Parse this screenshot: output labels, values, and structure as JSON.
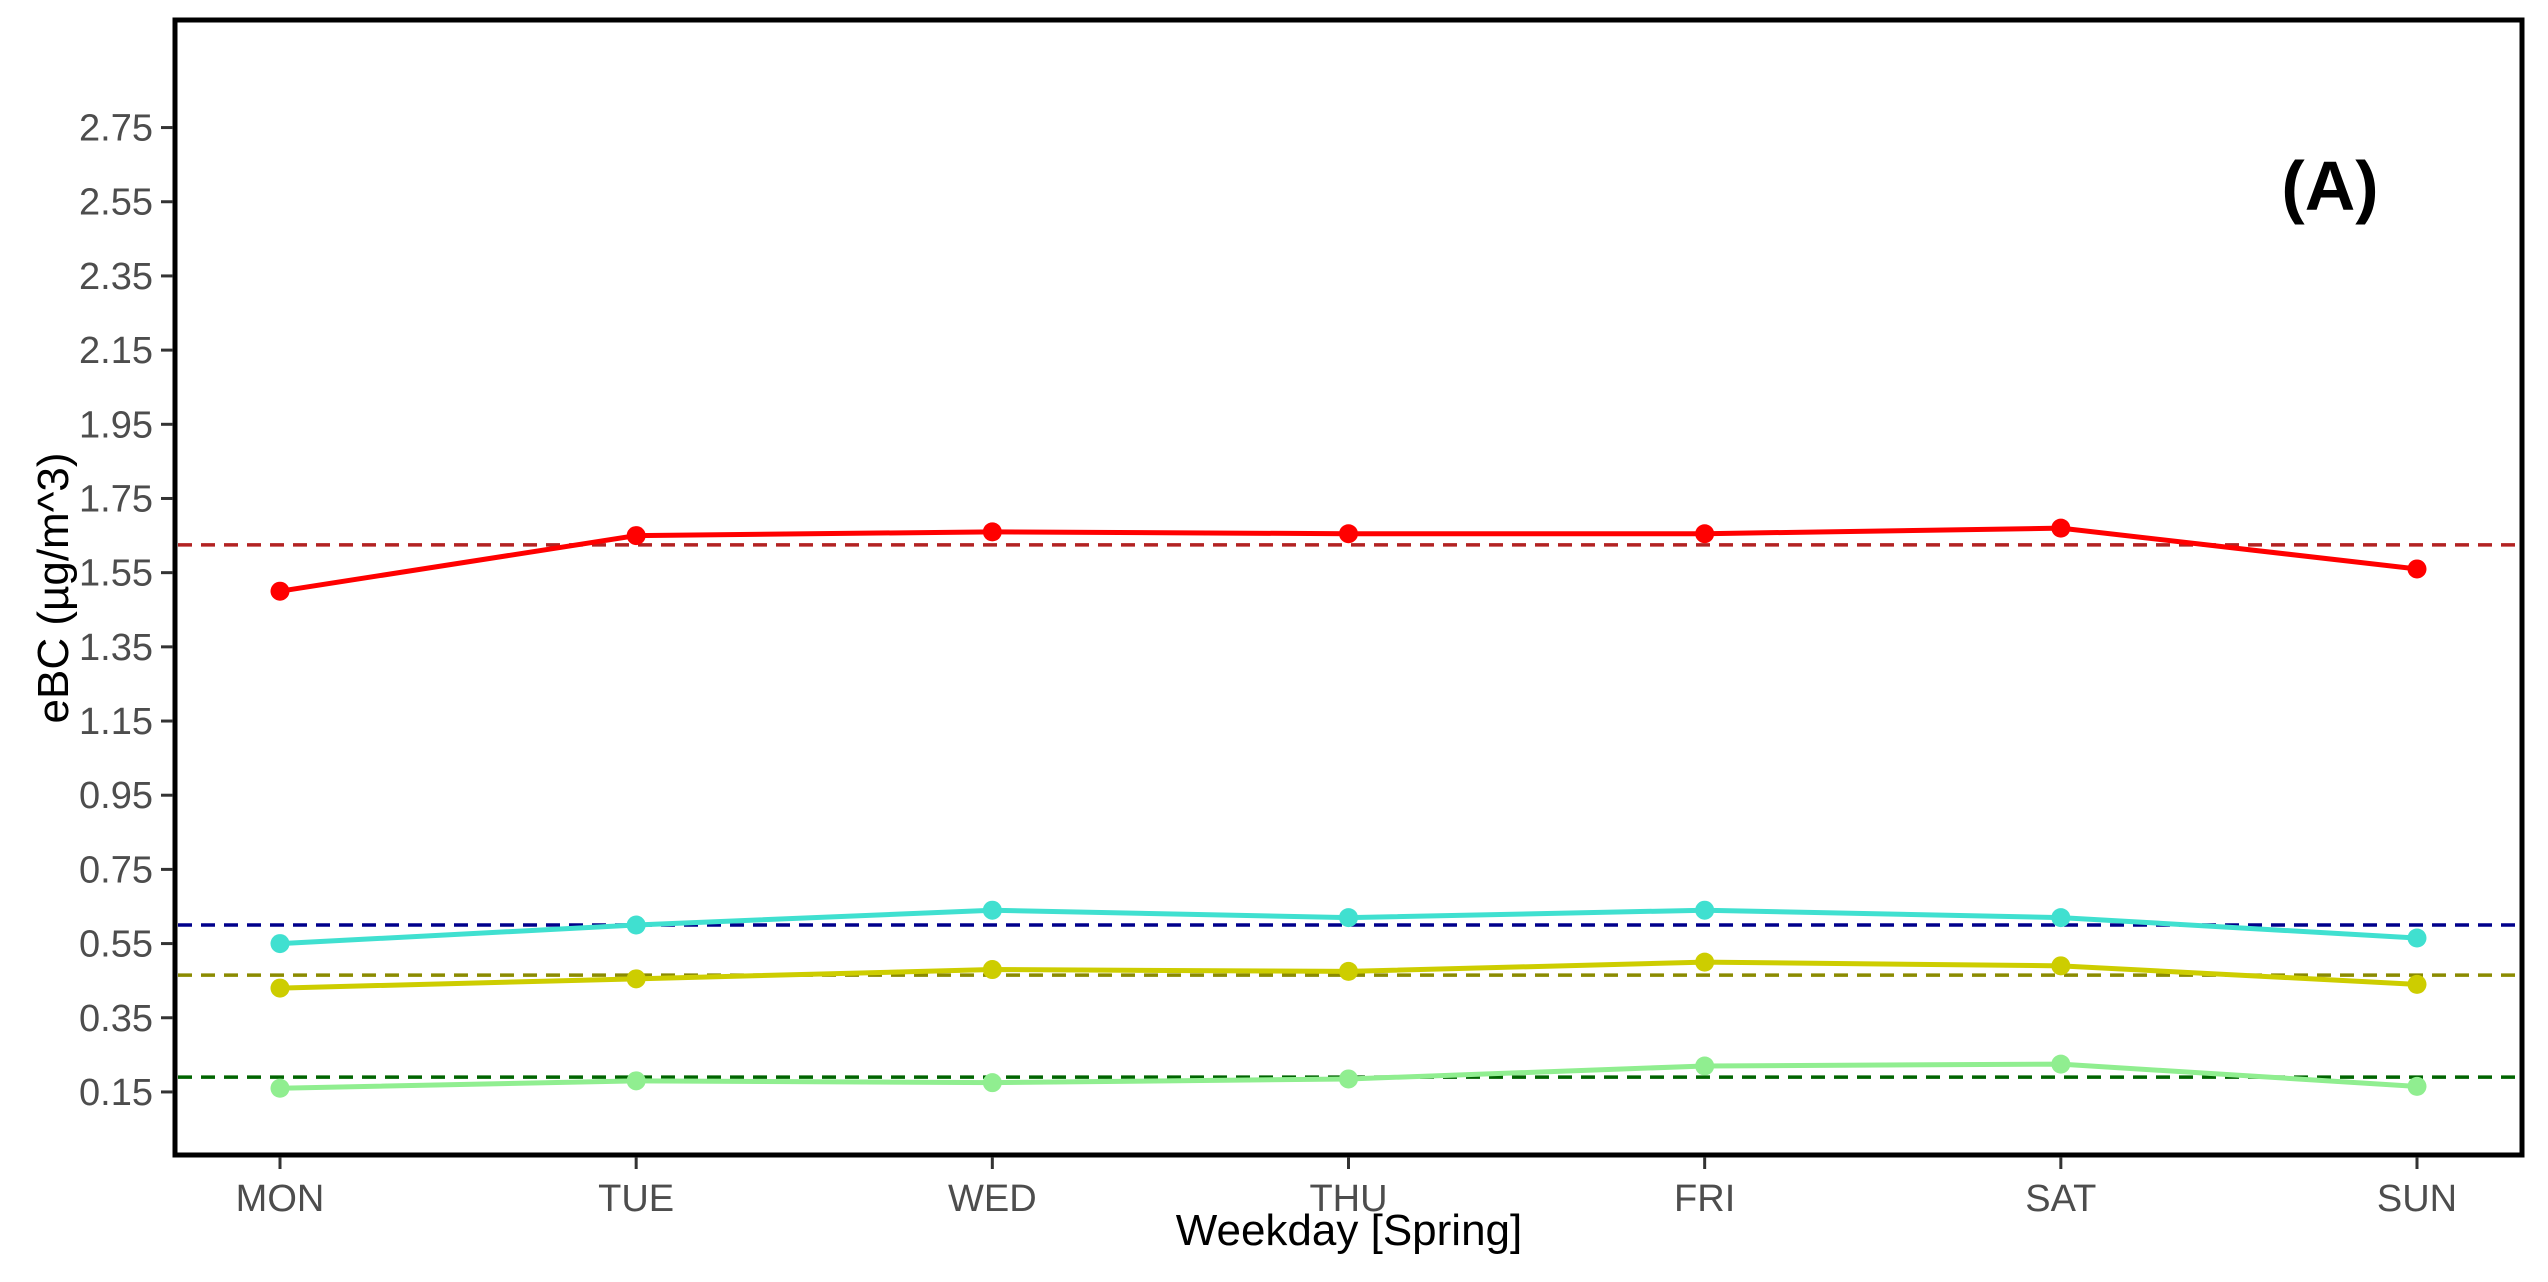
{
  "chart_data": {
    "type": "line",
    "title": "",
    "panel_label": "(A)",
    "xlabel": "Weekday [Spring]",
    "ylabel": "eBC (µg/m^3)",
    "categories": [
      "MON",
      "TUE",
      "WED",
      "THU",
      "FRI",
      "SAT",
      "SUN"
    ],
    "yticks": [
      "0.15",
      "0.35",
      "0.55",
      "0.75",
      "0.95",
      "1.15",
      "1.35",
      "1.55",
      "1.75",
      "1.95",
      "2.15",
      "2.35",
      "2.55",
      "2.75"
    ],
    "ylim": [
      -0.02,
      3.04
    ],
    "grid": false,
    "legend": "none",
    "series": [
      {
        "color": "#ff0000",
        "values": [
          1.5,
          1.65,
          1.66,
          1.655,
          1.655,
          1.67,
          1.56
        ],
        "mean": 1.625,
        "mean_color": "#b22222"
      },
      {
        "color": "#40e0d0",
        "values": [
          0.55,
          0.6,
          0.64,
          0.62,
          0.64,
          0.62,
          0.565
        ],
        "mean": 0.6,
        "mean_color": "#00008b"
      },
      {
        "color": "#cdcd00",
        "values": [
          0.43,
          0.455,
          0.48,
          0.475,
          0.5,
          0.49,
          0.44
        ],
        "mean": 0.465,
        "mean_color": "#8b8b00"
      },
      {
        "color": "#90ee90",
        "values": [
          0.16,
          0.18,
          0.175,
          0.185,
          0.22,
          0.225,
          0.165
        ],
        "mean": 0.19,
        "mean_color": "#006400"
      }
    ]
  }
}
